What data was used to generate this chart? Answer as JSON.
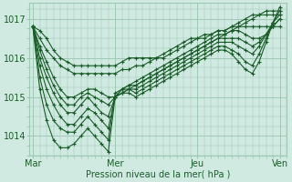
{
  "background_color": "#d0eae2",
  "grid_color": "#9fc9b5",
  "line_color": "#1a5c28",
  "xlabel": "Pression niveau de la mer( hPa )",
  "xlabel_color": "#1a5c28",
  "tick_color": "#1a5c28",
  "ylim": [
    1013.5,
    1017.4
  ],
  "yticks": [
    1014,
    1015,
    1016,
    1017
  ],
  "xtick_labels": [
    "Mar",
    "Mer",
    "Jeu",
    "Ven"
  ],
  "xtick_positions": [
    0,
    96,
    192,
    288
  ],
  "series": [
    {
      "x": [
        0,
        8,
        16,
        24,
        32,
        40,
        48,
        56,
        64,
        72,
        80,
        88,
        96,
        104,
        112,
        120,
        128,
        136,
        144,
        152,
        160,
        168,
        176,
        184,
        192,
        200,
        208,
        216,
        224,
        232,
        240,
        248,
        256,
        264,
        272,
        280,
        288
      ],
      "y": [
        1016.8,
        1016.7,
        1016.5,
        1016.2,
        1016.0,
        1015.9,
        1015.8,
        1015.8,
        1015.8,
        1015.8,
        1015.8,
        1015.8,
        1015.8,
        1015.9,
        1016.0,
        1016.0,
        1016.0,
        1016.0,
        1016.0,
        1016.0,
        1016.1,
        1016.2,
        1016.3,
        1016.4,
        1016.5,
        1016.5,
        1016.6,
        1016.7,
        1016.7,
        1016.8,
        1016.8,
        1016.8,
        1016.8,
        1016.8,
        1016.8,
        1016.8,
        1016.8
      ]
    },
    {
      "x": [
        0,
        8,
        16,
        24,
        32,
        40,
        48,
        56,
        64,
        72,
        80,
        88,
        96,
        104,
        112,
        120,
        128,
        136,
        144,
        152,
        160,
        168,
        176,
        184,
        192,
        200,
        208,
        216,
        224,
        232,
        240,
        248,
        256,
        264,
        272,
        280,
        288
      ],
      "y": [
        1016.8,
        1016.5,
        1016.2,
        1016.0,
        1015.8,
        1015.7,
        1015.6,
        1015.6,
        1015.6,
        1015.6,
        1015.6,
        1015.6,
        1015.6,
        1015.7,
        1015.7,
        1015.8,
        1015.8,
        1015.9,
        1016.0,
        1016.1,
        1016.2,
        1016.3,
        1016.4,
        1016.5,
        1016.5,
        1016.6,
        1016.6,
        1016.7,
        1016.7,
        1016.8,
        1016.9,
        1017.0,
        1017.1,
        1017.1,
        1017.1,
        1017.1,
        1017.1
      ]
    },
    {
      "x": [
        0,
        8,
        16,
        24,
        32,
        40,
        48,
        56,
        64,
        72,
        80,
        88,
        96,
        104,
        112,
        120,
        128,
        136,
        144,
        152,
        160,
        168,
        176,
        184,
        192,
        200,
        208,
        216,
        224,
        232,
        240,
        248,
        256,
        264,
        272,
        280,
        288
      ],
      "y": [
        1016.8,
        1016.3,
        1015.9,
        1015.5,
        1015.2,
        1015.0,
        1015.0,
        1015.1,
        1015.2,
        1015.2,
        1015.1,
        1015.0,
        1015.0,
        1015.1,
        1015.2,
        1015.3,
        1015.4,
        1015.5,
        1015.6,
        1015.7,
        1015.8,
        1015.9,
        1016.0,
        1016.1,
        1016.2,
        1016.3,
        1016.4,
        1016.5,
        1016.6,
        1016.7,
        1016.8,
        1016.9,
        1017.0,
        1017.1,
        1017.2,
        1017.2,
        1017.2
      ]
    },
    {
      "x": [
        0,
        8,
        16,
        24,
        32,
        40,
        48,
        56,
        64,
        72,
        80,
        88,
        96,
        104,
        112,
        120,
        128,
        136,
        144,
        152,
        160,
        168,
        176,
        184,
        192,
        200,
        208,
        216,
        224,
        232,
        240,
        248,
        256,
        264,
        272,
        280,
        288
      ],
      "y": [
        1016.8,
        1016.2,
        1015.7,
        1015.3,
        1015.0,
        1014.8,
        1014.8,
        1015.0,
        1015.1,
        1015.0,
        1014.9,
        1014.8,
        1015.0,
        1015.2,
        1015.3,
        1015.4,
        1015.5,
        1015.6,
        1015.7,
        1015.8,
        1015.9,
        1016.0,
        1016.1,
        1016.2,
        1016.3,
        1016.4,
        1016.5,
        1016.6,
        1016.6,
        1016.7,
        1016.7,
        1016.6,
        1016.5,
        1016.5,
        1016.6,
        1016.8,
        1017.0
      ]
    },
    {
      "x": [
        0,
        8,
        16,
        24,
        32,
        40,
        48,
        56,
        64,
        72,
        80,
        88,
        96,
        104,
        112,
        120,
        128,
        136,
        144,
        152,
        160,
        168,
        176,
        184,
        192,
        200,
        208,
        216,
        224,
        232,
        240,
        248,
        256,
        264,
        272,
        280,
        288
      ],
      "y": [
        1016.8,
        1016.0,
        1015.5,
        1015.1,
        1014.8,
        1014.6,
        1014.6,
        1014.8,
        1015.0,
        1014.8,
        1014.6,
        1014.5,
        1015.0,
        1015.2,
        1015.3,
        1015.3,
        1015.4,
        1015.5,
        1015.6,
        1015.7,
        1015.8,
        1015.9,
        1016.0,
        1016.1,
        1016.2,
        1016.3,
        1016.4,
        1016.5,
        1016.5,
        1016.5,
        1016.5,
        1016.4,
        1016.3,
        1016.4,
        1016.6,
        1016.8,
        1017.0
      ]
    },
    {
      "x": [
        0,
        8,
        16,
        24,
        32,
        40,
        48,
        56,
        64,
        72,
        80,
        88,
        96,
        104,
        112,
        120,
        128,
        136,
        144,
        152,
        160,
        168,
        176,
        184,
        192,
        200,
        208,
        216,
        224,
        232,
        240,
        248,
        256,
        264,
        272,
        280,
        288
      ],
      "y": [
        1016.8,
        1015.8,
        1015.2,
        1014.8,
        1014.5,
        1014.3,
        1014.3,
        1014.5,
        1014.7,
        1014.6,
        1014.4,
        1014.2,
        1015.0,
        1015.1,
        1015.2,
        1015.2,
        1015.3,
        1015.4,
        1015.5,
        1015.6,
        1015.7,
        1015.8,
        1015.9,
        1016.0,
        1016.1,
        1016.2,
        1016.3,
        1016.4,
        1016.4,
        1016.4,
        1016.3,
        1016.2,
        1016.1,
        1016.3,
        1016.6,
        1016.9,
        1017.1
      ]
    },
    {
      "x": [
        0,
        8,
        16,
        24,
        32,
        40,
        48,
        56,
        64,
        72,
        80,
        88,
        96,
        104,
        112,
        120,
        128,
        136,
        144,
        152,
        160,
        168,
        176,
        184,
        192,
        200,
        208,
        216,
        224,
        232,
        240,
        248,
        256,
        264,
        272,
        280,
        288
      ],
      "y": [
        1016.8,
        1015.5,
        1014.8,
        1014.4,
        1014.2,
        1014.1,
        1014.1,
        1014.3,
        1014.5,
        1014.3,
        1014.1,
        1013.9,
        1015.1,
        1015.2,
        1015.2,
        1015.1,
        1015.2,
        1015.3,
        1015.4,
        1015.5,
        1015.6,
        1015.7,
        1015.8,
        1015.9,
        1016.0,
        1016.1,
        1016.2,
        1016.3,
        1016.3,
        1016.2,
        1016.1,
        1015.9,
        1015.8,
        1016.1,
        1016.5,
        1016.9,
        1017.2
      ]
    },
    {
      "x": [
        0,
        8,
        16,
        24,
        32,
        40,
        48,
        56,
        64,
        72,
        80,
        88,
        96,
        104,
        112,
        120,
        128,
        136,
        144,
        152,
        160,
        168,
        176,
        184,
        192,
        200,
        208,
        216,
        224,
        232,
        240,
        248,
        256,
        264,
        272,
        280,
        288
      ],
      "y": [
        1016.8,
        1015.2,
        1014.4,
        1013.9,
        1013.7,
        1013.7,
        1013.8,
        1014.0,
        1014.2,
        1014.0,
        1013.8,
        1013.6,
        1015.0,
        1015.1,
        1015.1,
        1015.0,
        1015.1,
        1015.2,
        1015.3,
        1015.4,
        1015.5,
        1015.6,
        1015.7,
        1015.8,
        1015.9,
        1016.0,
        1016.1,
        1016.2,
        1016.2,
        1016.1,
        1015.9,
        1015.7,
        1015.6,
        1015.9,
        1016.4,
        1016.9,
        1017.3
      ]
    }
  ]
}
